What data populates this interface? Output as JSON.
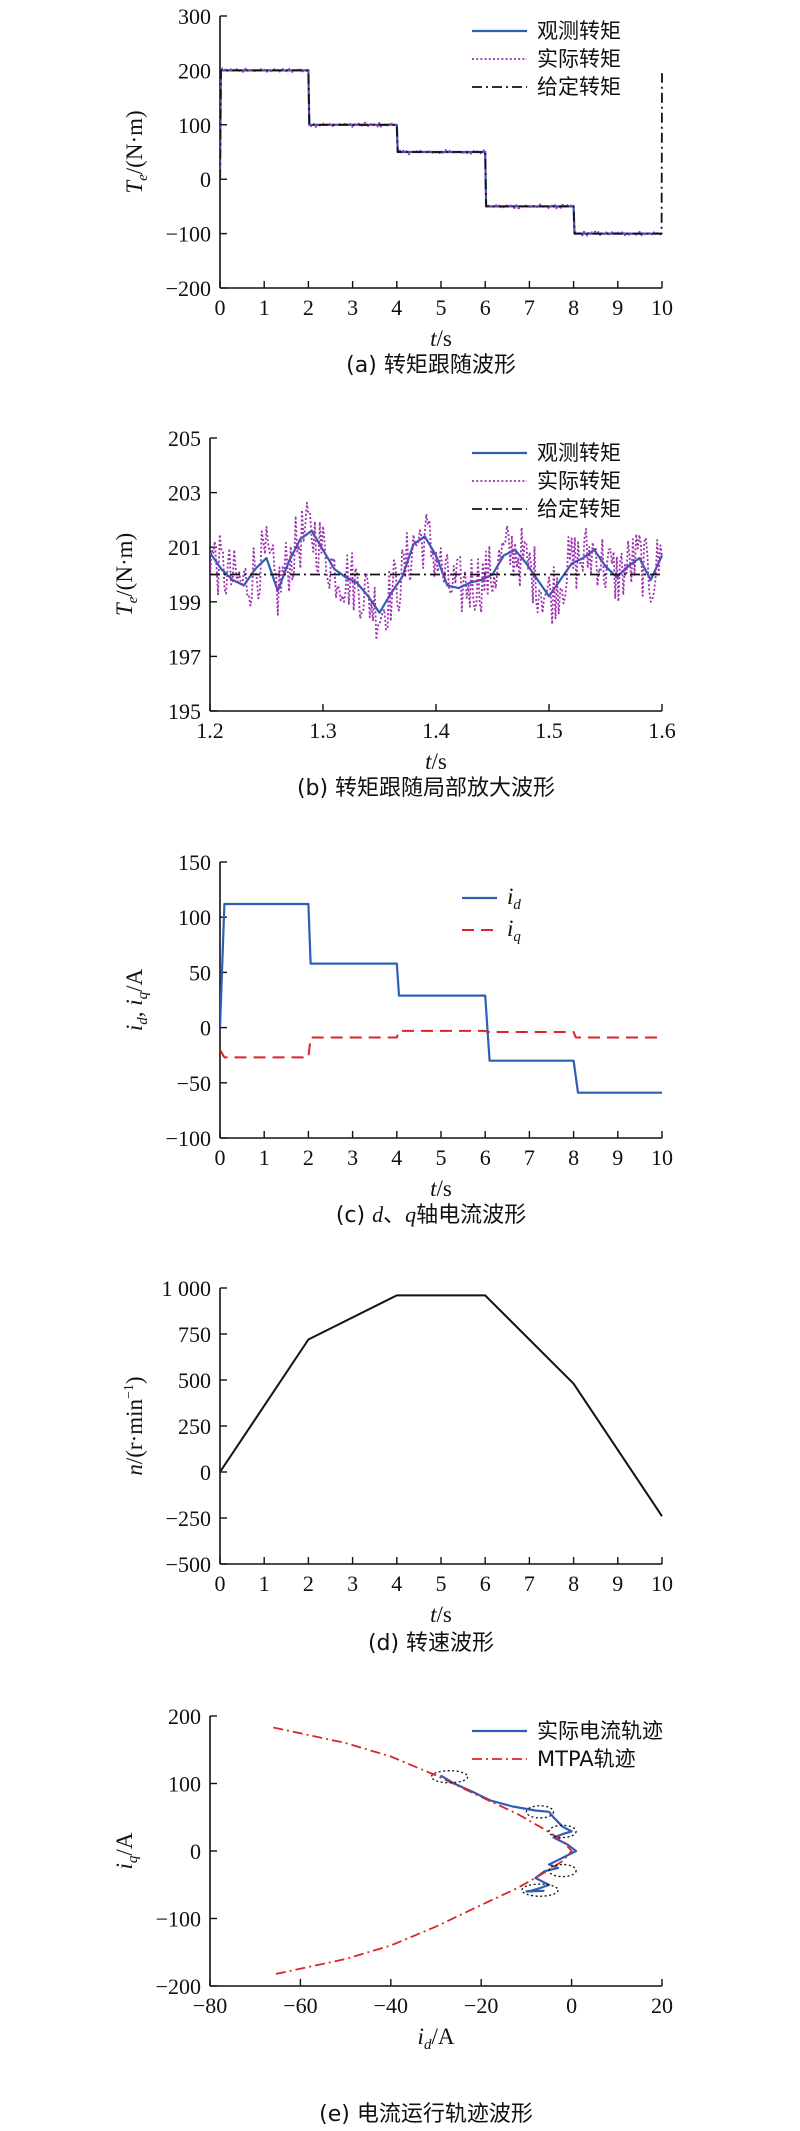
{
  "chart_data": [
    {
      "id": "a",
      "type": "line",
      "caption": "(a) 转矩跟随波形",
      "xlabel": {
        "italic": "t",
        "rest": "/s"
      },
      "ylabel": {
        "italic": "T",
        "sub": "e",
        "rest": "/(N·m)"
      },
      "xlim": [
        0,
        10
      ],
      "ylim": [
        -200,
        300
      ],
      "xticks": [
        0,
        1,
        2,
        3,
        4,
        5,
        6,
        7,
        8,
        9,
        10
      ],
      "xtick_labels": [
        "0",
        "1",
        "2",
        "3",
        "4",
        "5",
        "6",
        "7",
        "8",
        "9",
        "10"
      ],
      "yticks": [
        -200,
        -100,
        0,
        100,
        200,
        300
      ],
      "ytick_labels": [
        "−200",
        "−100",
        "0",
        "100",
        "200",
        "300"
      ],
      "legend": [
        "观测转矩",
        "实际转矩",
        "给定转矩"
      ],
      "legend_position": "top-right",
      "series": [
        {
          "name": "观测转矩",
          "style": "solid-blue",
          "x": [
            0,
            0.02,
            2,
            2.02,
            4,
            4.02,
            6,
            6.02,
            8,
            8.02,
            10
          ],
          "y": [
            0,
            200,
            200,
            100,
            100,
            50,
            50,
            -50,
            -50,
            -100,
            -100
          ]
        },
        {
          "name": "实际转矩",
          "style": "dotted-purple",
          "noise": 4,
          "x": [
            0,
            0.02,
            2,
            2.02,
            4,
            4.02,
            6,
            6.02,
            8,
            8.02,
            10
          ],
          "y": [
            0,
            200,
            200,
            100,
            100,
            50,
            50,
            -50,
            -50,
            -100,
            -100
          ]
        },
        {
          "name": "给定转矩",
          "style": "dashdot-black",
          "x": [
            0,
            0.02,
            2,
            2.02,
            4,
            4.02,
            6,
            6.02,
            8,
            8.02,
            9.99,
            10
          ],
          "y": [
            0,
            200,
            200,
            100,
            100,
            50,
            50,
            -50,
            -50,
            -100,
            -100,
            195
          ]
        }
      ]
    },
    {
      "id": "b",
      "type": "line",
      "caption": "(b) 转矩跟随局部放大波形",
      "xlabel": {
        "italic": "t",
        "rest": "/s"
      },
      "ylabel": {
        "italic": "T",
        "sub": "e",
        "rest": "/(N·m)"
      },
      "xlim": [
        1.2,
        1.6
      ],
      "ylim": [
        195,
        205
      ],
      "xticks": [
        1.2,
        1.3,
        1.4,
        1.5,
        1.6
      ],
      "xtick_labels": [
        "1.2",
        "1.3",
        "1.4",
        "1.5",
        "1.6"
      ],
      "yticks": [
        195,
        197,
        199,
        201,
        203,
        205
      ],
      "ytick_labels": [
        "195",
        "197",
        "199",
        "201",
        "203",
        "205"
      ],
      "legend": [
        "观测转矩",
        "实际转矩",
        "给定转矩"
      ],
      "legend_position": "top-right",
      "series": [
        {
          "name": "观测转矩",
          "style": "solid-blue",
          "x": [
            1.2,
            1.21,
            1.22,
            1.23,
            1.24,
            1.25,
            1.26,
            1.27,
            1.28,
            1.29,
            1.3,
            1.31,
            1.32,
            1.33,
            1.34,
            1.35,
            1.36,
            1.37,
            1.38,
            1.39,
            1.4,
            1.41,
            1.42,
            1.43,
            1.44,
            1.45,
            1.46,
            1.47,
            1.48,
            1.49,
            1.5,
            1.51,
            1.52,
            1.53,
            1.54,
            1.55,
            1.56,
            1.57,
            1.58,
            1.59,
            1.6
          ],
          "y": [
            200.8,
            200.2,
            199.8,
            199.6,
            200.2,
            200.6,
            199.4,
            200.5,
            201.3,
            201.6,
            200.9,
            200.2,
            199.9,
            199.7,
            199.2,
            198.6,
            199.3,
            199.9,
            201.1,
            201.4,
            200.7,
            199.6,
            199.5,
            199.7,
            199.8,
            200.0,
            200.7,
            200.9,
            200.4,
            199.8,
            199.2,
            199.8,
            200.4,
            200.6,
            200.9,
            200.3,
            199.9,
            200.3,
            200.6,
            199.8,
            200.7
          ]
        },
        {
          "name": "实际转矩",
          "style": "dotted-purple",
          "noise": 1.2,
          "x": [
            1.2,
            1.21,
            1.22,
            1.23,
            1.24,
            1.25,
            1.26,
            1.27,
            1.28,
            1.29,
            1.3,
            1.31,
            1.32,
            1.33,
            1.34,
            1.35,
            1.36,
            1.37,
            1.38,
            1.39,
            1.4,
            1.41,
            1.42,
            1.43,
            1.44,
            1.45,
            1.46,
            1.47,
            1.48,
            1.49,
            1.5,
            1.51,
            1.52,
            1.53,
            1.54,
            1.55,
            1.56,
            1.57,
            1.58,
            1.59,
            1.6
          ],
          "y": [
            200.8,
            200.2,
            199.8,
            199.6,
            200.2,
            200.6,
            199.4,
            200.5,
            201.3,
            201.6,
            200.9,
            200.2,
            199.9,
            199.7,
            199.2,
            198.6,
            199.3,
            199.9,
            201.1,
            201.4,
            200.7,
            199.6,
            199.5,
            199.7,
            199.8,
            200.0,
            200.7,
            200.9,
            200.4,
            199.8,
            199.2,
            199.8,
            200.4,
            200.6,
            200.9,
            200.3,
            199.9,
            200.3,
            200.6,
            199.8,
            200.7
          ]
        },
        {
          "name": "给定转矩",
          "style": "dashdot-black",
          "x": [
            1.2,
            1.6
          ],
          "y": [
            200,
            200
          ]
        }
      ]
    },
    {
      "id": "c",
      "type": "line",
      "caption": "(c) d、q轴电流波形",
      "caption_parts": {
        "p1": "(c) ",
        "i1": "d",
        "p2": "、",
        "i2": "q",
        "p3": "轴电流波形"
      },
      "xlabel": {
        "italic": "t",
        "rest": "/s"
      },
      "ylabel": {
        "i1": "i",
        "s1": "d",
        "mid": ", ",
        "i2": "i",
        "s2": "q",
        "rest": "/A"
      },
      "xlim": [
        0,
        10
      ],
      "ylim": [
        -100,
        150
      ],
      "xticks": [
        0,
        1,
        2,
        3,
        4,
        5,
        6,
        7,
        8,
        9,
        10
      ],
      "xtick_labels": [
        "0",
        "1",
        "2",
        "3",
        "4",
        "5",
        "6",
        "7",
        "8",
        "9",
        "10"
      ],
      "yticks": [
        -100,
        -50,
        0,
        50,
        100,
        150
      ],
      "ytick_labels": [
        "−100",
        "−50",
        "0",
        "50",
        "100",
        "150"
      ],
      "legend_position": "top-right",
      "series": [
        {
          "name_italic": "i",
          "name_sub": "d",
          "style": "solid-blue",
          "x": [
            0,
            0.1,
            2,
            2.05,
            4,
            4.05,
            6,
            6.1,
            8,
            8.1,
            10
          ],
          "y": [
            0,
            112,
            112,
            58,
            58,
            29,
            29,
            -30,
            -30,
            -59,
            -59
          ]
        },
        {
          "name_italic": "i",
          "name_sub": "q",
          "style": "dashed-red",
          "x": [
            0,
            0.1,
            2,
            2.05,
            4,
            4.05,
            6,
            6.05,
            8,
            8.05,
            10
          ],
          "y": [
            -20,
            -27,
            -27,
            -9,
            -9,
            -3,
            -3,
            -4,
            -4,
            -9,
            -9
          ]
        }
      ]
    },
    {
      "id": "d",
      "type": "line",
      "caption": "(d) 转速波形",
      "xlabel": {
        "italic": "t",
        "rest": "/s"
      },
      "ylabel": {
        "italic": "n",
        "rest": "/(r·min",
        "sup": "−1",
        "close": ")"
      },
      "xlim": [
        0,
        10
      ],
      "ylim": [
        -500,
        1000
      ],
      "xticks": [
        0,
        1,
        2,
        3,
        4,
        5,
        6,
        7,
        8,
        9,
        10
      ],
      "xtick_labels": [
        "0",
        "1",
        "2",
        "3",
        "4",
        "5",
        "6",
        "7",
        "8",
        "9",
        "10"
      ],
      "yticks": [
        -500,
        -250,
        0,
        250,
        500,
        750,
        1000
      ],
      "ytick_labels": [
        "−500",
        "−250",
        "0",
        "250",
        "500",
        "750",
        "1 000"
      ],
      "series": [
        {
          "name": "",
          "style": "solid-black",
          "x": [
            0,
            2,
            4,
            6,
            8,
            10
          ],
          "y": [
            0,
            720,
            960,
            960,
            480,
            -240
          ]
        }
      ]
    },
    {
      "id": "e",
      "type": "line",
      "caption": "(e) 电流运行轨迹波形",
      "xlabel": {
        "italic": "i",
        "sub": "d",
        "rest": "/A"
      },
      "ylabel": {
        "italic": "i",
        "sub": "q",
        "rest": "/A"
      },
      "xlim": [
        -80,
        20
      ],
      "ylim": [
        -200,
        200
      ],
      "xticks": [
        -80,
        -60,
        -40,
        -20,
        0,
        20
      ],
      "xtick_labels": [
        "−80",
        "−60",
        "−40",
        "−20",
        "0",
        "20"
      ],
      "yticks": [
        -200,
        -100,
        0,
        100,
        200
      ],
      "ytick_labels": [
        "−200",
        "−100",
        "0",
        "100",
        "200"
      ],
      "legend": [
        "实际电流轨迹",
        "MTPA轨迹"
      ],
      "legend_position": "top-right",
      "series": [
        {
          "name": "实际电流轨迹",
          "style": "solid-blue",
          "x": [
            -29,
            -26,
            -22,
            -18,
            -13,
            -8,
            -5,
            -4,
            -2,
            0,
            -2,
            -4,
            -1,
            1,
            -2,
            -5,
            -3,
            -6,
            -8,
            -5,
            -7,
            -9,
            -10,
            -6
          ],
          "y": [
            112,
            100,
            88,
            75,
            66,
            60,
            58,
            50,
            36,
            29,
            25,
            20,
            10,
            0,
            -10,
            -20,
            -25,
            -30,
            -40,
            -50,
            -55,
            -59,
            -60,
            -59
          ]
        },
        {
          "name": "MTPA轨迹",
          "style": "dashdot-red",
          "x": [
            -66,
            -50,
            -40,
            -30,
            -20,
            -12,
            -6,
            -2,
            0,
            -2,
            -6,
            -12,
            -20,
            -30,
            -40,
            -50,
            -66
          ],
          "y": [
            183,
            160,
            140,
            112,
            80,
            55,
            32,
            15,
            0,
            -15,
            -32,
            -55,
            -80,
            -112,
            -140,
            -160,
            -183
          ]
        }
      ],
      "ellipses": [
        {
          "cx": -27,
          "cy": 110,
          "rx": 4,
          "ry": 9
        },
        {
          "cx": -7,
          "cy": 58,
          "rx": 3,
          "ry": 9
        },
        {
          "cx": -2,
          "cy": 29,
          "rx": 3,
          "ry": 9
        },
        {
          "cx": -2,
          "cy": -29,
          "rx": 3,
          "ry": 9
        },
        {
          "cx": -7,
          "cy": -58,
          "rx": 4,
          "ry": 9
        }
      ]
    }
  ]
}
